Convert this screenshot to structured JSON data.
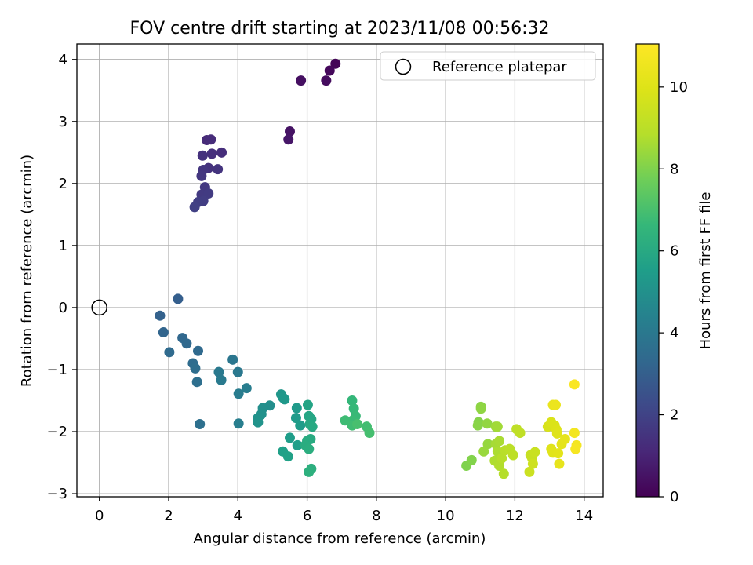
{
  "chart_data": {
    "type": "scatter",
    "title": "FOV centre drift starting at 2023/11/08 00:56:32",
    "xlabel": "Angular distance from reference (arcmin)",
    "ylabel": "Rotation from reference (arcmin)",
    "xlim": [
      -0.65,
      14.55
    ],
    "ylim": [
      -3.05,
      4.25
    ],
    "xticks": [
      0,
      2,
      4,
      6,
      8,
      10,
      12,
      14
    ],
    "yticks": [
      -3,
      -2,
      -1,
      0,
      1,
      2,
      3,
      4
    ],
    "grid": true,
    "legend": {
      "placement": "top-right",
      "entries": [
        "Reference platepar"
      ]
    },
    "reference_point": {
      "x": 0,
      "y": 0,
      "label": "Reference platepar"
    },
    "colorbar": {
      "label": "Hours from first FF file",
      "colormap": "viridis",
      "range": [
        0,
        11.05
      ],
      "ticks": [
        0,
        2,
        4,
        6,
        8,
        10
      ]
    },
    "points": [
      {
        "x": 6.82,
        "y": 3.93,
        "h": 0.1
      },
      {
        "x": 6.65,
        "y": 3.82,
        "h": 0.2
      },
      {
        "x": 6.55,
        "y": 3.66,
        "h": 0.3
      },
      {
        "x": 5.82,
        "y": 3.66,
        "h": 0.4
      },
      {
        "x": 5.5,
        "y": 2.84,
        "h": 0.5
      },
      {
        "x": 5.46,
        "y": 2.71,
        "h": 0.6
      },
      {
        "x": 3.1,
        "y": 2.7,
        "h": 1.2
      },
      {
        "x": 3.22,
        "y": 2.71,
        "h": 1.25
      },
      {
        "x": 3.53,
        "y": 2.5,
        "h": 1.3
      },
      {
        "x": 3.25,
        "y": 2.48,
        "h": 1.35
      },
      {
        "x": 2.98,
        "y": 2.45,
        "h": 1.4
      },
      {
        "x": 3.15,
        "y": 2.25,
        "h": 1.45
      },
      {
        "x": 3.42,
        "y": 2.23,
        "h": 1.5
      },
      {
        "x": 3.0,
        "y": 2.22,
        "h": 1.55
      },
      {
        "x": 2.95,
        "y": 2.12,
        "h": 1.6
      },
      {
        "x": 3.05,
        "y": 1.94,
        "h": 1.65
      },
      {
        "x": 2.95,
        "y": 1.82,
        "h": 1.7
      },
      {
        "x": 3.15,
        "y": 1.84,
        "h": 1.75
      },
      {
        "x": 3.0,
        "y": 1.72,
        "h": 1.8
      },
      {
        "x": 2.85,
        "y": 1.7,
        "h": 1.85
      },
      {
        "x": 2.75,
        "y": 1.62,
        "h": 1.9
      },
      {
        "x": 2.27,
        "y": 0.14,
        "h": 3.0
      },
      {
        "x": 1.75,
        "y": -0.13,
        "h": 3.1
      },
      {
        "x": 1.85,
        "y": -0.4,
        "h": 3.2
      },
      {
        "x": 2.4,
        "y": -0.49,
        "h": 3.3
      },
      {
        "x": 2.52,
        "y": -0.58,
        "h": 3.35
      },
      {
        "x": 2.85,
        "y": -0.7,
        "h": 3.4
      },
      {
        "x": 2.02,
        "y": -0.72,
        "h": 3.45
      },
      {
        "x": 2.7,
        "y": -0.9,
        "h": 3.5
      },
      {
        "x": 2.77,
        "y": -0.98,
        "h": 3.55
      },
      {
        "x": 2.82,
        "y": -1.2,
        "h": 3.6
      },
      {
        "x": 2.9,
        "y": -1.88,
        "h": 3.65
      },
      {
        "x": 3.85,
        "y": -0.84,
        "h": 3.9
      },
      {
        "x": 4.0,
        "y": -1.04,
        "h": 4.0
      },
      {
        "x": 3.45,
        "y": -1.04,
        "h": 4.05
      },
      {
        "x": 3.52,
        "y": -1.17,
        "h": 4.1
      },
      {
        "x": 4.02,
        "y": -1.39,
        "h": 4.15
      },
      {
        "x": 4.25,
        "y": -1.3,
        "h": 4.2
      },
      {
        "x": 4.02,
        "y": -1.87,
        "h": 4.25
      },
      {
        "x": 4.92,
        "y": -1.58,
        "h": 4.9
      },
      {
        "x": 4.72,
        "y": -1.62,
        "h": 4.95
      },
      {
        "x": 4.68,
        "y": -1.72,
        "h": 5.0
      },
      {
        "x": 4.58,
        "y": -1.78,
        "h": 5.05
      },
      {
        "x": 4.58,
        "y": -1.85,
        "h": 5.1
      },
      {
        "x": 5.25,
        "y": -1.4,
        "h": 5.2
      },
      {
        "x": 5.3,
        "y": -1.45,
        "h": 5.25
      },
      {
        "x": 5.35,
        "y": -1.48,
        "h": 5.3
      },
      {
        "x": 5.7,
        "y": -1.62,
        "h": 5.35
      },
      {
        "x": 5.68,
        "y": -1.78,
        "h": 5.4
      },
      {
        "x": 5.8,
        "y": -1.9,
        "h": 5.45
      },
      {
        "x": 5.5,
        "y": -2.1,
        "h": 5.5
      },
      {
        "x": 5.72,
        "y": -2.22,
        "h": 5.55
      },
      {
        "x": 5.3,
        "y": -2.32,
        "h": 5.6
      },
      {
        "x": 5.45,
        "y": -2.4,
        "h": 5.65
      },
      {
        "x": 6.02,
        "y": -1.57,
        "h": 5.8
      },
      {
        "x": 6.05,
        "y": -1.75,
        "h": 5.85
      },
      {
        "x": 6.12,
        "y": -1.8,
        "h": 5.9
      },
      {
        "x": 6.08,
        "y": -1.88,
        "h": 5.95
      },
      {
        "x": 6.15,
        "y": -1.92,
        "h": 6.0
      },
      {
        "x": 6.1,
        "y": -2.12,
        "h": 6.05
      },
      {
        "x": 6.0,
        "y": -2.15,
        "h": 6.1
      },
      {
        "x": 5.95,
        "y": -2.22,
        "h": 6.15
      },
      {
        "x": 6.05,
        "y": -2.28,
        "h": 6.2
      },
      {
        "x": 6.12,
        "y": -2.6,
        "h": 6.25
      },
      {
        "x": 6.05,
        "y": -2.65,
        "h": 6.3
      },
      {
        "x": 7.3,
        "y": -1.5,
        "h": 6.6
      },
      {
        "x": 7.35,
        "y": -1.63,
        "h": 6.65
      },
      {
        "x": 7.4,
        "y": -1.75,
        "h": 6.7
      },
      {
        "x": 7.32,
        "y": -1.82,
        "h": 6.75
      },
      {
        "x": 7.1,
        "y": -1.82,
        "h": 6.8
      },
      {
        "x": 7.3,
        "y": -1.9,
        "h": 6.85
      },
      {
        "x": 7.72,
        "y": -1.92,
        "h": 6.9
      },
      {
        "x": 7.8,
        "y": -2.02,
        "h": 6.95
      },
      {
        "x": 7.45,
        "y": -1.88,
        "h": 7.0
      },
      {
        "x": 10.6,
        "y": -2.55,
        "h": 8.0
      },
      {
        "x": 10.75,
        "y": -2.46,
        "h": 8.05
      },
      {
        "x": 10.95,
        "y": -1.85,
        "h": 8.1
      },
      {
        "x": 10.93,
        "y": -1.9,
        "h": 8.15
      },
      {
        "x": 11.02,
        "y": -1.6,
        "h": 8.2
      },
      {
        "x": 11.02,
        "y": -1.63,
        "h": 8.25
      },
      {
        "x": 11.2,
        "y": -1.87,
        "h": 8.3
      },
      {
        "x": 11.22,
        "y": -2.2,
        "h": 8.35
      },
      {
        "x": 11.1,
        "y": -2.32,
        "h": 8.4
      },
      {
        "x": 11.45,
        "y": -1.92,
        "h": 8.5
      },
      {
        "x": 11.5,
        "y": -1.92,
        "h": 8.55
      },
      {
        "x": 11.45,
        "y": -2.2,
        "h": 8.6
      },
      {
        "x": 11.55,
        "y": -2.15,
        "h": 8.65
      },
      {
        "x": 11.5,
        "y": -2.32,
        "h": 8.7
      },
      {
        "x": 11.42,
        "y": -2.47,
        "h": 8.75
      },
      {
        "x": 11.55,
        "y": -2.55,
        "h": 8.8
      },
      {
        "x": 11.68,
        "y": -2.68,
        "h": 8.85
      },
      {
        "x": 11.62,
        "y": -2.43,
        "h": 8.9
      },
      {
        "x": 11.72,
        "y": -2.3,
        "h": 8.95
      },
      {
        "x": 11.85,
        "y": -2.28,
        "h": 9.0
      },
      {
        "x": 11.95,
        "y": -2.38,
        "h": 9.05
      },
      {
        "x": 12.05,
        "y": -1.96,
        "h": 9.1
      },
      {
        "x": 12.15,
        "y": -2.02,
        "h": 9.15
      },
      {
        "x": 12.45,
        "y": -2.38,
        "h": 9.3
      },
      {
        "x": 12.5,
        "y": -2.43,
        "h": 9.35
      },
      {
        "x": 12.58,
        "y": -2.33,
        "h": 9.4
      },
      {
        "x": 12.42,
        "y": -2.65,
        "h": 9.45
      },
      {
        "x": 12.52,
        "y": -2.52,
        "h": 9.5
      },
      {
        "x": 12.95,
        "y": -1.92,
        "h": 9.8
      },
      {
        "x": 13.05,
        "y": -1.85,
        "h": 9.85
      },
      {
        "x": 13.15,
        "y": -1.9,
        "h": 9.9
      },
      {
        "x": 13.2,
        "y": -1.97,
        "h": 9.95
      },
      {
        "x": 13.22,
        "y": -2.03,
        "h": 10.0
      },
      {
        "x": 13.05,
        "y": -2.28,
        "h": 10.05
      },
      {
        "x": 13.1,
        "y": -2.34,
        "h": 10.1
      },
      {
        "x": 13.25,
        "y": -2.35,
        "h": 10.15
      },
      {
        "x": 13.35,
        "y": -2.2,
        "h": 10.2
      },
      {
        "x": 13.45,
        "y": -2.12,
        "h": 10.25
      },
      {
        "x": 13.28,
        "y": -2.52,
        "h": 10.3
      },
      {
        "x": 13.1,
        "y": -1.57,
        "h": 10.4
      },
      {
        "x": 13.18,
        "y": -1.57,
        "h": 10.45
      },
      {
        "x": 13.72,
        "y": -1.24,
        "h": 10.9
      },
      {
        "x": 13.72,
        "y": -2.02,
        "h": 10.7
      },
      {
        "x": 13.78,
        "y": -2.22,
        "h": 10.75
      },
      {
        "x": 13.75,
        "y": -2.28,
        "h": 10.8
      }
    ]
  }
}
